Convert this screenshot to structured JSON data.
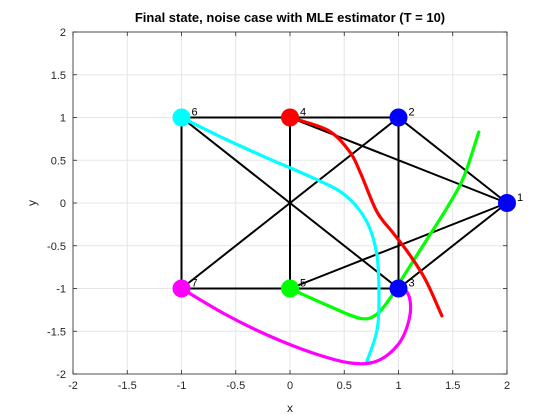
{
  "chart_data": {
    "type": "line",
    "title": "Final state, noise case with MLE estimator (T = 10)",
    "xlabel": "x",
    "ylabel": "y",
    "xlim": [
      -2,
      2
    ],
    "ylim": [
      -2,
      2
    ],
    "grid": true,
    "x_ticks": [
      "-2",
      "-1.5",
      "-1",
      "-0.5",
      "0",
      "0.5",
      "1",
      "1.5",
      "2"
    ],
    "y_ticks": [
      "-2",
      "-1.5",
      "-1",
      "-0.5",
      "0",
      "0.5",
      "1",
      "1.5",
      "2"
    ],
    "nodes": [
      {
        "label": "1",
        "x": 2,
        "y": 0,
        "color": "#0000ff"
      },
      {
        "label": "2",
        "x": 1,
        "y": 1,
        "color": "#0000ff"
      },
      {
        "label": "3",
        "x": 1,
        "y": -1,
        "color": "#0000ff"
      },
      {
        "label": "4",
        "x": 0,
        "y": 1,
        "color": "#ff0000"
      },
      {
        "label": "5",
        "x": 0,
        "y": -1,
        "color": "#00ff00"
      },
      {
        "label": "6",
        "x": -1,
        "y": 1,
        "color": "#00ffff"
      },
      {
        "label": "7",
        "x": -1,
        "y": -1,
        "color": "#ff00ff"
      }
    ],
    "edges": [
      [
        "6",
        "4"
      ],
      [
        "4",
        "2"
      ],
      [
        "6",
        "7"
      ],
      [
        "7",
        "5"
      ],
      [
        "5",
        "3"
      ],
      [
        "4",
        "5"
      ],
      [
        "6",
        "3"
      ],
      [
        "7",
        "2"
      ],
      [
        "4",
        "1"
      ],
      [
        "2",
        "1"
      ],
      [
        "3",
        "1"
      ],
      [
        "5",
        "1"
      ],
      [
        "2",
        "3"
      ]
    ],
    "series": [
      {
        "color": "#00ff00",
        "points": [
          [
            0,
            -1
          ],
          [
            0.35,
            -1.2
          ],
          [
            0.65,
            -1.35
          ],
          [
            0.8,
            -1.3
          ],
          [
            0.93,
            -1.1
          ],
          [
            1.05,
            -0.85
          ],
          [
            1.25,
            -0.45
          ],
          [
            1.45,
            -0.05
          ],
          [
            1.6,
            0.3
          ],
          [
            1.74,
            0.83
          ]
        ]
      },
      {
        "color": "#ff0000",
        "points": [
          [
            0,
            1
          ],
          [
            0.35,
            0.85
          ],
          [
            0.55,
            0.6
          ],
          [
            0.65,
            0.35
          ],
          [
            0.8,
            -0.1
          ],
          [
            0.95,
            -0.35
          ],
          [
            1.1,
            -0.6
          ],
          [
            1.25,
            -0.9
          ],
          [
            1.4,
            -1.32
          ]
        ]
      },
      {
        "color": "#00ffff",
        "points": [
          [
            -1,
            1
          ],
          [
            -0.6,
            0.75
          ],
          [
            -0.2,
            0.52
          ],
          [
            0.2,
            0.3
          ],
          [
            0.5,
            0.1
          ],
          [
            0.7,
            -0.2
          ],
          [
            0.8,
            -0.6
          ],
          [
            0.82,
            -1.1
          ],
          [
            0.8,
            -1.5
          ],
          [
            0.7,
            -1.88
          ]
        ]
      },
      {
        "color": "#ff00ff",
        "points": [
          [
            -1,
            -1
          ],
          [
            -0.6,
            -1.3
          ],
          [
            -0.2,
            -1.55
          ],
          [
            0.2,
            -1.75
          ],
          [
            0.55,
            -1.87
          ],
          [
            0.8,
            -1.85
          ],
          [
            1.0,
            -1.65
          ],
          [
            1.1,
            -1.35
          ],
          [
            1.1,
            -1.1
          ],
          [
            1.02,
            -0.95
          ]
        ]
      }
    ]
  }
}
